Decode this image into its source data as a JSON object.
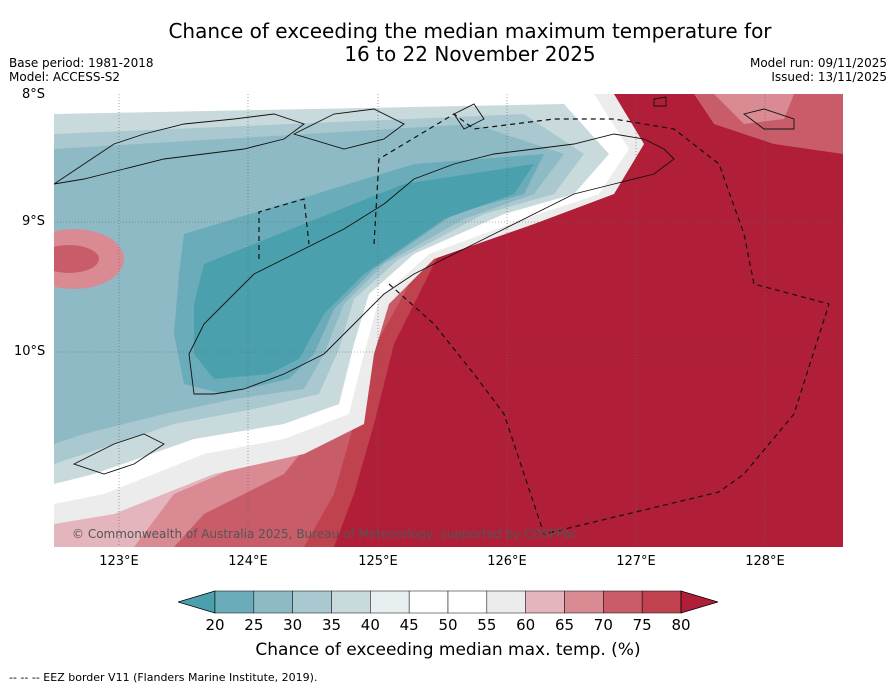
{
  "title_line1": "Chance of exceeding the median maximum temperature for",
  "title_line2": "16 to 22 November 2025",
  "base_period": "Base period: 1981-2018",
  "model": "Model: ACCESS-S2",
  "model_run": "Model run: 09/11/2025",
  "issued": "Issued: 13/11/2025",
  "lat_labels": [
    "8°S",
    "9°S",
    "10°S"
  ],
  "lon_labels": [
    "123°E",
    "124°E",
    "125°E",
    "126°E",
    "127°E",
    "128°E"
  ],
  "credit": "© Commonwealth of Australia 2025, Bureau of Meteorology, supported by COSPPac",
  "colorbar": {
    "ticks": [
      "20",
      "25",
      "30",
      "35",
      "40",
      "45",
      "50",
      "55",
      "60",
      "65",
      "70",
      "75",
      "80"
    ],
    "colors": [
      "#4ba0ae",
      "#6aacb9",
      "#8ebac6",
      "#aac8cf",
      "#c9dadd",
      "#e8eff1",
      "#ffffff",
      "#ffffff",
      "#ececec",
      "#e4b5bc",
      "#d98a93",
      "#c85d69",
      "#c0424f",
      "#b01e38"
    ],
    "label": "Chance of exceeding median max. temp. (%)"
  },
  "footer": "--  --  -- EEZ border V11 (Flanders Marine Institute, 2019)."
}
